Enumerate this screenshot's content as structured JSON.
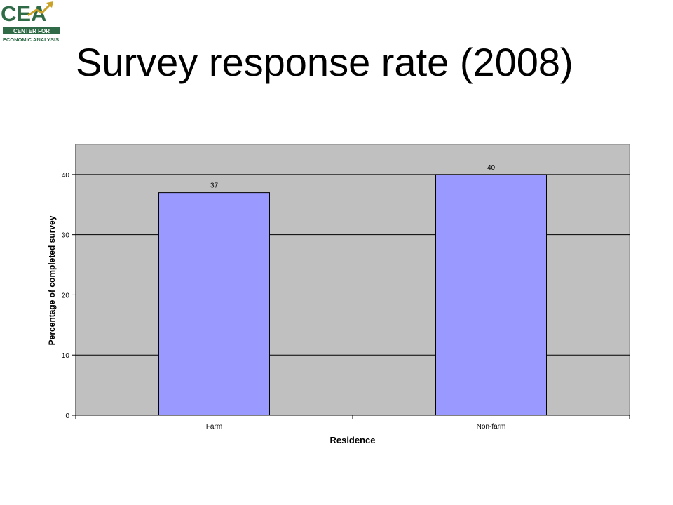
{
  "logo": {
    "letters": "CEA",
    "line1": "CENTER FOR",
    "line2": "ECONOMIC ANALYSIS",
    "colors": {
      "green": "#2e6b46",
      "gold": "#c9a227"
    }
  },
  "title": "Survey response rate (2008)",
  "chart_data": {
    "type": "bar",
    "categories": [
      "Farm",
      "Non-farm"
    ],
    "values": [
      37,
      40
    ],
    "data_labels": [
      "37",
      "40"
    ],
    "xlabel": "Residence",
    "ylabel": "Percentage of completed survey",
    "ylim": [
      0,
      45
    ],
    "yticks": [
      0,
      10,
      20,
      30,
      40
    ],
    "ytick_labels": [
      "0",
      "10",
      "20",
      "30",
      "40"
    ],
    "grid": true,
    "legend": "none",
    "colors": {
      "bar": "#9999ff",
      "plot_bg": "#c0c0c0",
      "gridline": "#000000"
    }
  }
}
